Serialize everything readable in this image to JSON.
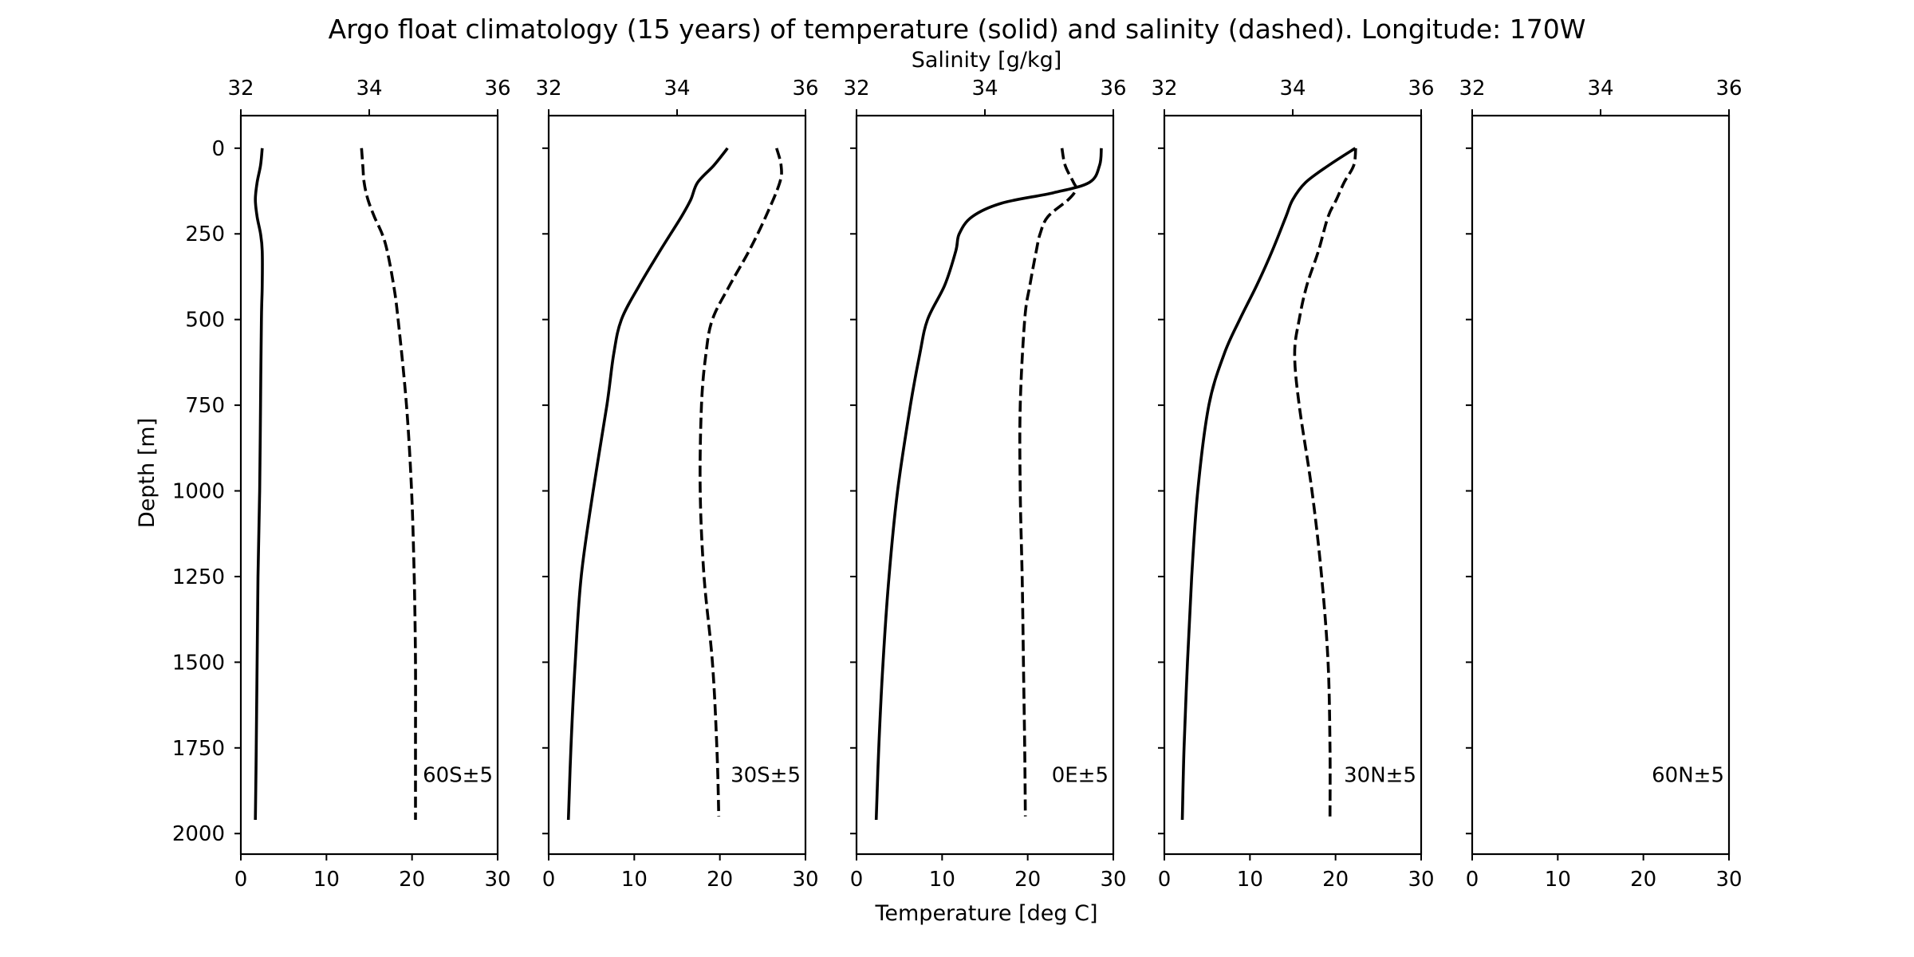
{
  "chart_data": {
    "type": "line",
    "title": "Argo float climatology (15 years) of temperature (solid) and salinity (dashed). Longitude: 170W",
    "xlabel": "Temperature [deg C]",
    "x2label": "Salinity [g/kg]",
    "ylabel": "Depth [m]",
    "xlim": [
      0,
      30
    ],
    "x2lim": [
      32,
      36
    ],
    "ylim": [
      2060,
      -95
    ],
    "y_inverted": true,
    "xticks": [
      0,
      10,
      20,
      30
    ],
    "x2ticks": [
      32,
      34,
      36
    ],
    "yticks": [
      0,
      250,
      500,
      750,
      1000,
      1250,
      1500,
      1750,
      2000
    ],
    "grid": false,
    "panels": [
      {
        "label": "60S±5",
        "temperature": {
          "depth": [
            0,
            50,
            100,
            150,
            200,
            250,
            300,
            400,
            500,
            750,
            1000,
            1250,
            1500,
            1750,
            1960
          ],
          "value": [
            2.5,
            2.3,
            1.9,
            1.7,
            1.9,
            2.3,
            2.5,
            2.5,
            2.4,
            2.3,
            2.2,
            2.0,
            1.9,
            1.8,
            1.7
          ]
        },
        "salinity": {
          "depth": [
            0,
            50,
            100,
            150,
            200,
            250,
            300,
            400,
            500,
            750,
            1000,
            1250,
            1500,
            1750,
            1960
          ],
          "value": [
            33.88,
            33.9,
            33.92,
            33.98,
            34.08,
            34.2,
            34.28,
            34.38,
            34.45,
            34.58,
            34.66,
            34.7,
            34.72,
            34.72,
            34.72
          ]
        }
      },
      {
        "label": "30S±5",
        "temperature": {
          "depth": [
            0,
            50,
            100,
            150,
            200,
            300,
            400,
            500,
            600,
            750,
            1000,
            1250,
            1500,
            1750,
            1960
          ],
          "value": [
            20.9,
            19.3,
            17.4,
            16.6,
            15.5,
            13.0,
            10.6,
            8.5,
            7.6,
            6.8,
            5.2,
            3.8,
            3.1,
            2.6,
            2.3
          ]
        },
        "salinity": {
          "depth": [
            0,
            50,
            100,
            200,
            300,
            400,
            500,
            600,
            750,
            1000,
            1250,
            1500,
            1750,
            1950
          ],
          "value": [
            35.55,
            35.62,
            35.6,
            35.38,
            35.12,
            34.82,
            34.55,
            34.45,
            34.38,
            34.36,
            34.42,
            34.55,
            34.62,
            34.65
          ]
        }
      },
      {
        "label": "0E±5",
        "temperature": {
          "depth": [
            0,
            50,
            100,
            130,
            160,
            200,
            250,
            300,
            400,
            500,
            600,
            750,
            1000,
            1250,
            1500,
            1750,
            1960
          ],
          "value": [
            28.6,
            28.4,
            27.2,
            23.0,
            17.0,
            13.5,
            12.0,
            11.6,
            10.3,
            8.3,
            7.4,
            6.3,
            4.8,
            3.8,
            3.1,
            2.6,
            2.3
          ]
        },
        "salinity": {
          "depth": [
            0,
            50,
            100,
            120,
            150,
            200,
            250,
            300,
            400,
            500,
            750,
            1000,
            1250,
            1500,
            1750,
            1950
          ],
          "value": [
            35.2,
            35.25,
            35.38,
            35.42,
            35.3,
            34.98,
            34.86,
            34.8,
            34.7,
            34.62,
            34.55,
            34.55,
            34.58,
            34.6,
            34.62,
            34.63
          ]
        }
      },
      {
        "label": "30N±5",
        "temperature": {
          "depth": [
            0,
            50,
            100,
            150,
            200,
            300,
            400,
            500,
            600,
            750,
            1000,
            1250,
            1500,
            1750,
            1960
          ],
          "value": [
            22.3,
            19.2,
            16.5,
            15.0,
            14.2,
            12.6,
            10.8,
            8.8,
            7.0,
            5.2,
            3.9,
            3.2,
            2.7,
            2.3,
            2.1
          ]
        },
        "salinity": {
          "depth": [
            0,
            50,
            100,
            150,
            200,
            300,
            400,
            500,
            600,
            750,
            1000,
            1250,
            1500,
            1750,
            1950
          ],
          "value": [
            34.98,
            34.95,
            34.8,
            34.68,
            34.55,
            34.4,
            34.22,
            34.1,
            34.03,
            34.1,
            34.3,
            34.45,
            34.55,
            34.58,
            34.58
          ]
        }
      },
      {
        "label": "60N±5",
        "temperature": {
          "depth": [],
          "value": []
        },
        "salinity": {
          "depth": [],
          "value": []
        }
      }
    ]
  }
}
